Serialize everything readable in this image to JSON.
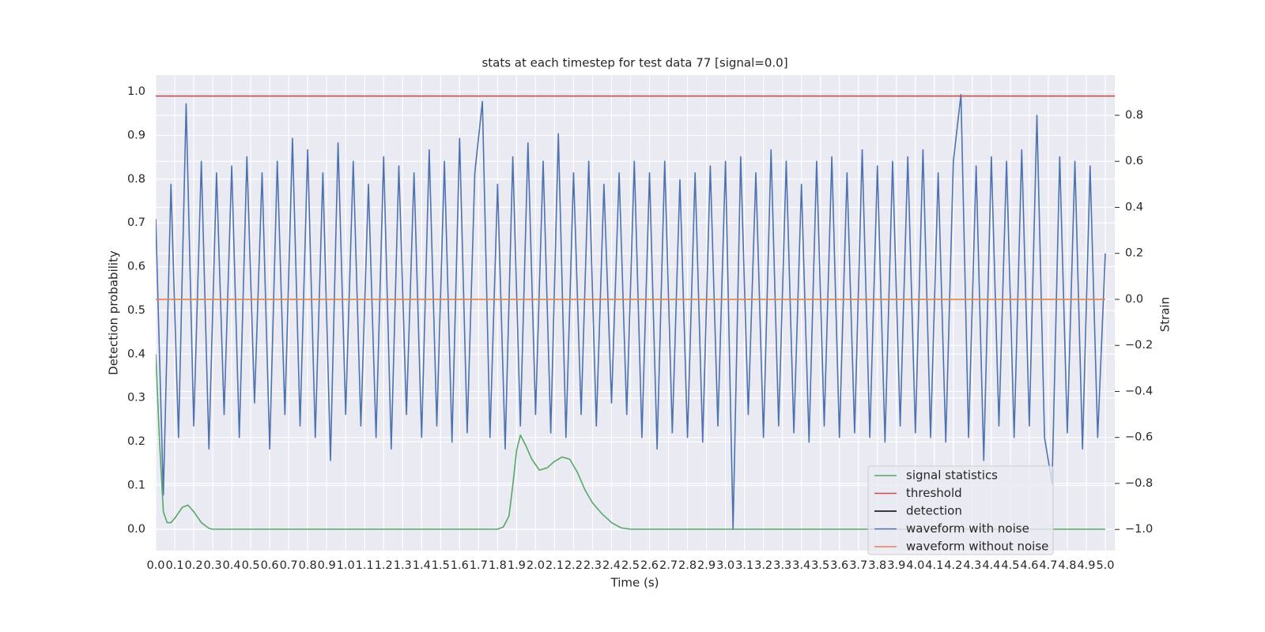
{
  "chart_data": {
    "type": "line",
    "title": "stats at each timestep for test data 77 [signal=0.0]",
    "x_label": "Time (s)",
    "y_label": "Detection probability",
    "y2_label": "Strain",
    "xlim": [
      0,
      5.05
    ],
    "ylim": [
      -0.049,
      1.038
    ],
    "y2lim": [
      -1.092,
      0.975
    ],
    "xticks": [
      {
        "value": 0,
        "label": "0.0"
      },
      0.1,
      0.2,
      0.3,
      0.4,
      0.5,
      0.6,
      0.7,
      0.8,
      0.9,
      {
        "value": 1,
        "label": "1.0"
      },
      1.1,
      1.2,
      1.3,
      1.4,
      1.5,
      1.6,
      1.7,
      1.8,
      1.9,
      {
        "value": 2,
        "label": "2.0"
      },
      2.1,
      2.2,
      2.3,
      2.4,
      2.5,
      2.6,
      2.7,
      2.8,
      2.9,
      {
        "value": 3,
        "label": "3.0"
      },
      3.1,
      3.2,
      3.3,
      3.4,
      3.5,
      3.6,
      3.7,
      3.8,
      3.9,
      {
        "value": 4,
        "label": "4.0"
      },
      4.1,
      4.2,
      4.3,
      4.4,
      4.5,
      4.6,
      4.7,
      4.8,
      4.9,
      {
        "value": 5,
        "label": "5.0"
      }
    ],
    "yticks": [
      {
        "value": 0,
        "label": "0.0"
      },
      0.1,
      0.2,
      0.3,
      0.4,
      0.5,
      0.6,
      0.7,
      0.8,
      0.9,
      {
        "value": 1,
        "label": "1.0"
      }
    ],
    "y2ticks": [
      {
        "value": -1,
        "label": "−1.0"
      },
      {
        "value": -0.8,
        "label": "−0.8"
      },
      {
        "value": -0.6,
        "label": "−0.6"
      },
      {
        "value": -0.4,
        "label": "−0.4"
      },
      {
        "value": -0.2,
        "label": "−0.2"
      },
      {
        "value": 0,
        "label": "0.0"
      },
      0.2,
      0.4,
      0.6,
      0.8
    ],
    "grid": true,
    "legend_position": "lower right",
    "series": [
      {
        "name": "signal statistics",
        "color": "#55a868",
        "x": [
          0,
          0.02,
          0.04,
          0.06,
          0.08,
          0.1,
          0.14,
          0.17,
          0.2,
          0.24,
          0.28,
          0.3,
          1.8,
          1.83,
          1.86,
          1.88,
          1.9,
          1.92,
          1.95,
          1.98,
          2.02,
          2.06,
          2.1,
          2.14,
          2.18,
          2.22,
          2.26,
          2.3,
          2.35,
          2.4,
          2.45,
          2.5,
          5.0
        ],
        "values": [
          0.4,
          0.2,
          0.04,
          0.015,
          0.015,
          0.025,
          0.05,
          0.055,
          0.04,
          0.015,
          0.002,
          0,
          0,
          0.005,
          0.03,
          0.1,
          0.18,
          0.215,
          0.19,
          0.16,
          0.135,
          0.14,
          0.155,
          0.165,
          0.16,
          0.13,
          0.09,
          0.06,
          0.035,
          0.015,
          0.003,
          0,
          0
        ]
      },
      {
        "name": "threshold",
        "color": "#c44e52",
        "x": [
          0,
          5.05
        ],
        "values": [
          0.99,
          0.99
        ]
      },
      {
        "name": "detection",
        "color": "#000000",
        "x": [
          0,
          5.0
        ],
        "values": [
          null,
          null
        ]
      },
      {
        "name": "waveform with noise",
        "color": "#4c72b0",
        "axis": "y2",
        "x": [
          0,
          0.04,
          0.08,
          0.12,
          0.16,
          0.2,
          0.24,
          0.28,
          0.32,
          0.36,
          0.4,
          0.44,
          0.48,
          0.52,
          0.56,
          0.6,
          0.64,
          0.68,
          0.72,
          0.76,
          0.8,
          0.84,
          0.88,
          0.92,
          0.96,
          1.0,
          1.04,
          1.08,
          1.12,
          1.16,
          1.2,
          1.24,
          1.28,
          1.32,
          1.36,
          1.4,
          1.44,
          1.48,
          1.52,
          1.56,
          1.6,
          1.64,
          1.68,
          1.72,
          1.76,
          1.8,
          1.84,
          1.88,
          1.92,
          1.96,
          2.0,
          2.04,
          2.08,
          2.12,
          2.16,
          2.2,
          2.24,
          2.28,
          2.32,
          2.36,
          2.4,
          2.44,
          2.48,
          2.52,
          2.56,
          2.6,
          2.64,
          2.68,
          2.72,
          2.76,
          2.8,
          2.84,
          2.88,
          2.92,
          2.96,
          3.0,
          3.04,
          3.08,
          3.12,
          3.16,
          3.2,
          3.24,
          3.28,
          3.32,
          3.36,
          3.4,
          3.44,
          3.48,
          3.52,
          3.56,
          3.6,
          3.64,
          3.68,
          3.72,
          3.76,
          3.8,
          3.84,
          3.88,
          3.92,
          3.96,
          4.0,
          4.04,
          4.08,
          4.12,
          4.16,
          4.2,
          4.24,
          4.28,
          4.32,
          4.36,
          4.4,
          4.44,
          4.48,
          4.52,
          4.56,
          4.6,
          4.64,
          4.68,
          4.72,
          4.76,
          4.8,
          4.84,
          4.88,
          4.92,
          4.96,
          5.0
        ],
        "values": [
          0.35,
          -0.85,
          0.5,
          -0.6,
          0.85,
          -0.55,
          0.6,
          -0.65,
          0.55,
          -0.5,
          0.58,
          -0.6,
          0.62,
          -0.45,
          0.55,
          -0.65,
          0.6,
          -0.5,
          0.7,
          -0.55,
          0.65,
          -0.6,
          0.55,
          -0.7,
          0.68,
          -0.5,
          0.6,
          -0.55,
          0.5,
          -0.6,
          0.62,
          -0.65,
          0.58,
          -0.5,
          0.55,
          -0.6,
          0.65,
          -0.55,
          0.6,
          -0.62,
          0.7,
          -0.58,
          0.55,
          0.86,
          -0.6,
          0.5,
          -0.65,
          0.62,
          -0.55,
          0.68,
          -0.5,
          0.6,
          -0.58,
          0.72,
          -0.6,
          0.55,
          -0.5,
          0.6,
          -0.55,
          0.5,
          -0.45,
          0.55,
          -0.5,
          0.6,
          -0.6,
          0.55,
          -0.65,
          0.6,
          -0.58,
          0.52,
          -0.6,
          0.55,
          -0.62,
          0.58,
          -0.55,
          0.6,
          -1.0,
          0.62,
          -0.5,
          0.55,
          -0.6,
          0.65,
          -0.55,
          0.6,
          -0.58,
          0.5,
          -0.62,
          0.6,
          -0.55,
          0.62,
          -0.6,
          0.55,
          -0.58,
          0.65,
          -0.6,
          0.58,
          -0.62,
          0.6,
          -0.55,
          0.62,
          -0.58,
          0.65,
          -0.6,
          0.55,
          -0.62,
          0.6,
          0.89,
          -0.6,
          0.58,
          -0.7,
          0.62,
          -0.55,
          0.6,
          -0.6,
          0.65,
          -0.55,
          0.8,
          -0.6,
          -0.8,
          0.62,
          -0.58,
          0.6,
          -0.65,
          0.58,
          -0.6,
          0.2
        ]
      },
      {
        "name": "waveform without noise",
        "color": "#dd8452",
        "axis": "y2",
        "x": [
          0,
          5.0
        ],
        "values": [
          0,
          0
        ]
      }
    ]
  }
}
